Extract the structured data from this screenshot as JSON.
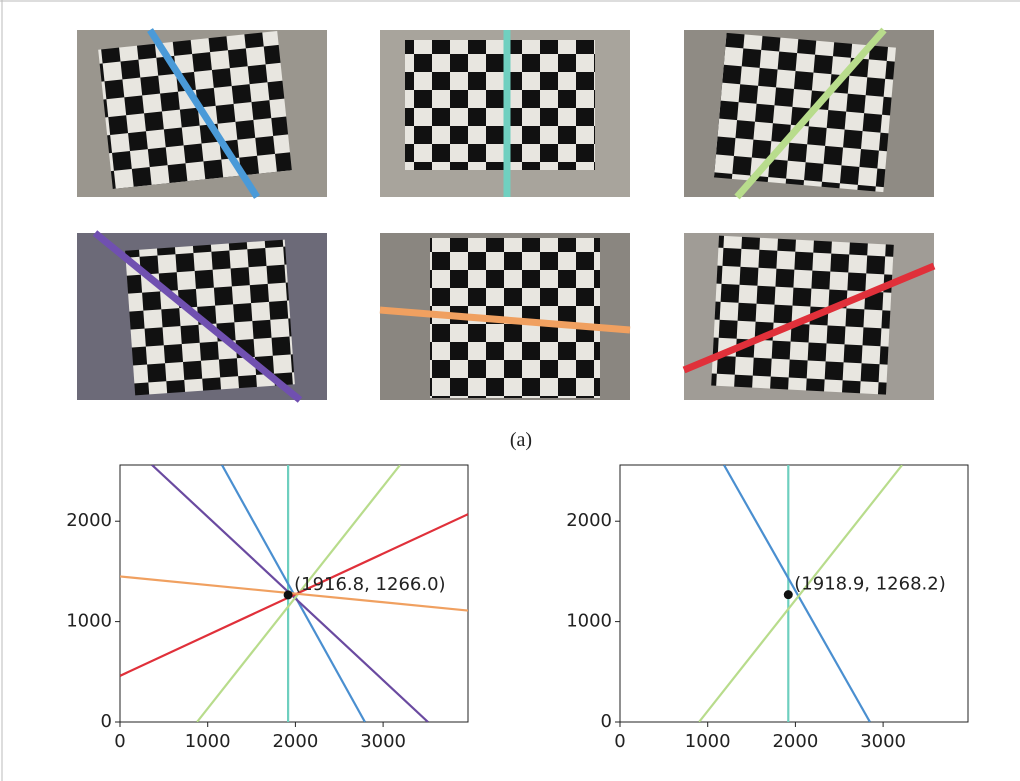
{
  "figure": {
    "caption": "(a)"
  },
  "chart_data": [
    {
      "type": "line",
      "xlim": [
        0,
        3968
      ],
      "ylim": [
        0,
        2560
      ],
      "xticks": [
        0,
        1000,
        2000,
        3000
      ],
      "yticks": [
        0,
        1000,
        2000
      ],
      "series": [
        {
          "color": "#6ecfbf",
          "x": [
            1916.8,
            1916.8
          ],
          "values": [
            0,
            2560
          ]
        },
        {
          "color": "#4a8fd0",
          "x": [
            1163,
            2793
          ],
          "values": [
            2560,
            0
          ]
        },
        {
          "color": "#6a4aa0",
          "x": [
            365,
            3512
          ],
          "values": [
            2560,
            0
          ]
        },
        {
          "color": "#b8dc8c",
          "x": [
            878,
            3193
          ],
          "values": [
            0,
            2560
          ]
        },
        {
          "color": "#e0303a",
          "x": [
            0,
            3968
          ],
          "values": [
            460,
            2070
          ]
        },
        {
          "color": "#f0a060",
          "x": [
            0,
            3968
          ],
          "values": [
            1450,
            1110
          ]
        }
      ],
      "point": {
        "x": 1916.8,
        "y": 1266.0,
        "label": "(1916.8, 1266.0)"
      }
    },
    {
      "type": "line",
      "xlim": [
        0,
        3968
      ],
      "ylim": [
        0,
        2560
      ],
      "xticks": [
        0,
        1000,
        2000,
        3000
      ],
      "yticks": [
        0,
        1000,
        2000
      ],
      "series": [
        {
          "color": "#6ecfbf",
          "x": [
            1918.9,
            1918.9
          ],
          "values": [
            0,
            2560
          ]
        },
        {
          "color": "#4a8fd0",
          "x": [
            1186,
            2850
          ],
          "values": [
            2560,
            0
          ]
        },
        {
          "color": "#b8dc8c",
          "x": [
            901,
            3217
          ],
          "values": [
            0,
            2560
          ]
        }
      ],
      "point": {
        "x": 1918.9,
        "y": 1268.2,
        "label": "(1918.9, 1268.2)"
      }
    }
  ]
}
